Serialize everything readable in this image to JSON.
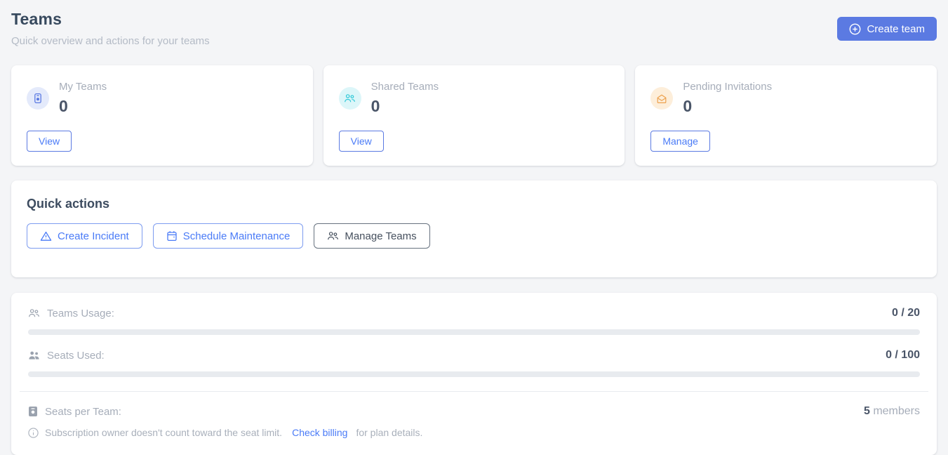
{
  "page": {
    "title": "Teams",
    "subtitle": "Quick overview and actions for your teams"
  },
  "header": {
    "create_team_button": "Create team"
  },
  "stat_cards": [
    {
      "label": "My Teams",
      "value": "0",
      "action_label": "View",
      "icon": "badge-icon",
      "icon_color": "#5b7ae2",
      "icon_bg": "#e4eafb"
    },
    {
      "label": "Shared Teams",
      "value": "0",
      "action_label": "View",
      "icon": "users-icon",
      "icon_color": "#2fc9d8",
      "icon_bg": "#dcf6f9"
    },
    {
      "label": "Pending Invitations",
      "value": "0",
      "action_label": "Manage",
      "icon": "mail-open-icon",
      "icon_color": "#eda14e",
      "icon_bg": "#fdeeda"
    }
  ],
  "quick_actions": {
    "title": "Quick actions",
    "create_incident_label": "Create Incident",
    "schedule_maintenance_label": "Schedule Maintenance",
    "manage_teams_label": "Manage Teams"
  },
  "usage": {
    "teams_usage": {
      "label": "Teams Usage:",
      "value": "0 / 20",
      "progress_percent": 0
    },
    "seats_used": {
      "label": "Seats Used:",
      "value": "0 / 100",
      "progress_percent": 0
    },
    "seats_per_team": {
      "label": "Seats per Team:",
      "value": "5",
      "unit": "members"
    },
    "note": {
      "text_before_link": "Subscription owner doesn't count toward the seat limit.",
      "link_label": "Check billing",
      "text_after_link": "for plan details."
    }
  },
  "colors": {
    "primary_blue": "#5b7ae2",
    "outline_blue": "#7d9cf0",
    "link_blue": "#4a7bf7",
    "cyan_accent": "#2fc9d8",
    "orange_accent": "#eda14e",
    "heading_dark": "#37495e",
    "muted_gray": "#a6adb9",
    "page_background": "#f4f5f7",
    "card_background": "#ffffff",
    "progress_track": "#e8ebef"
  }
}
